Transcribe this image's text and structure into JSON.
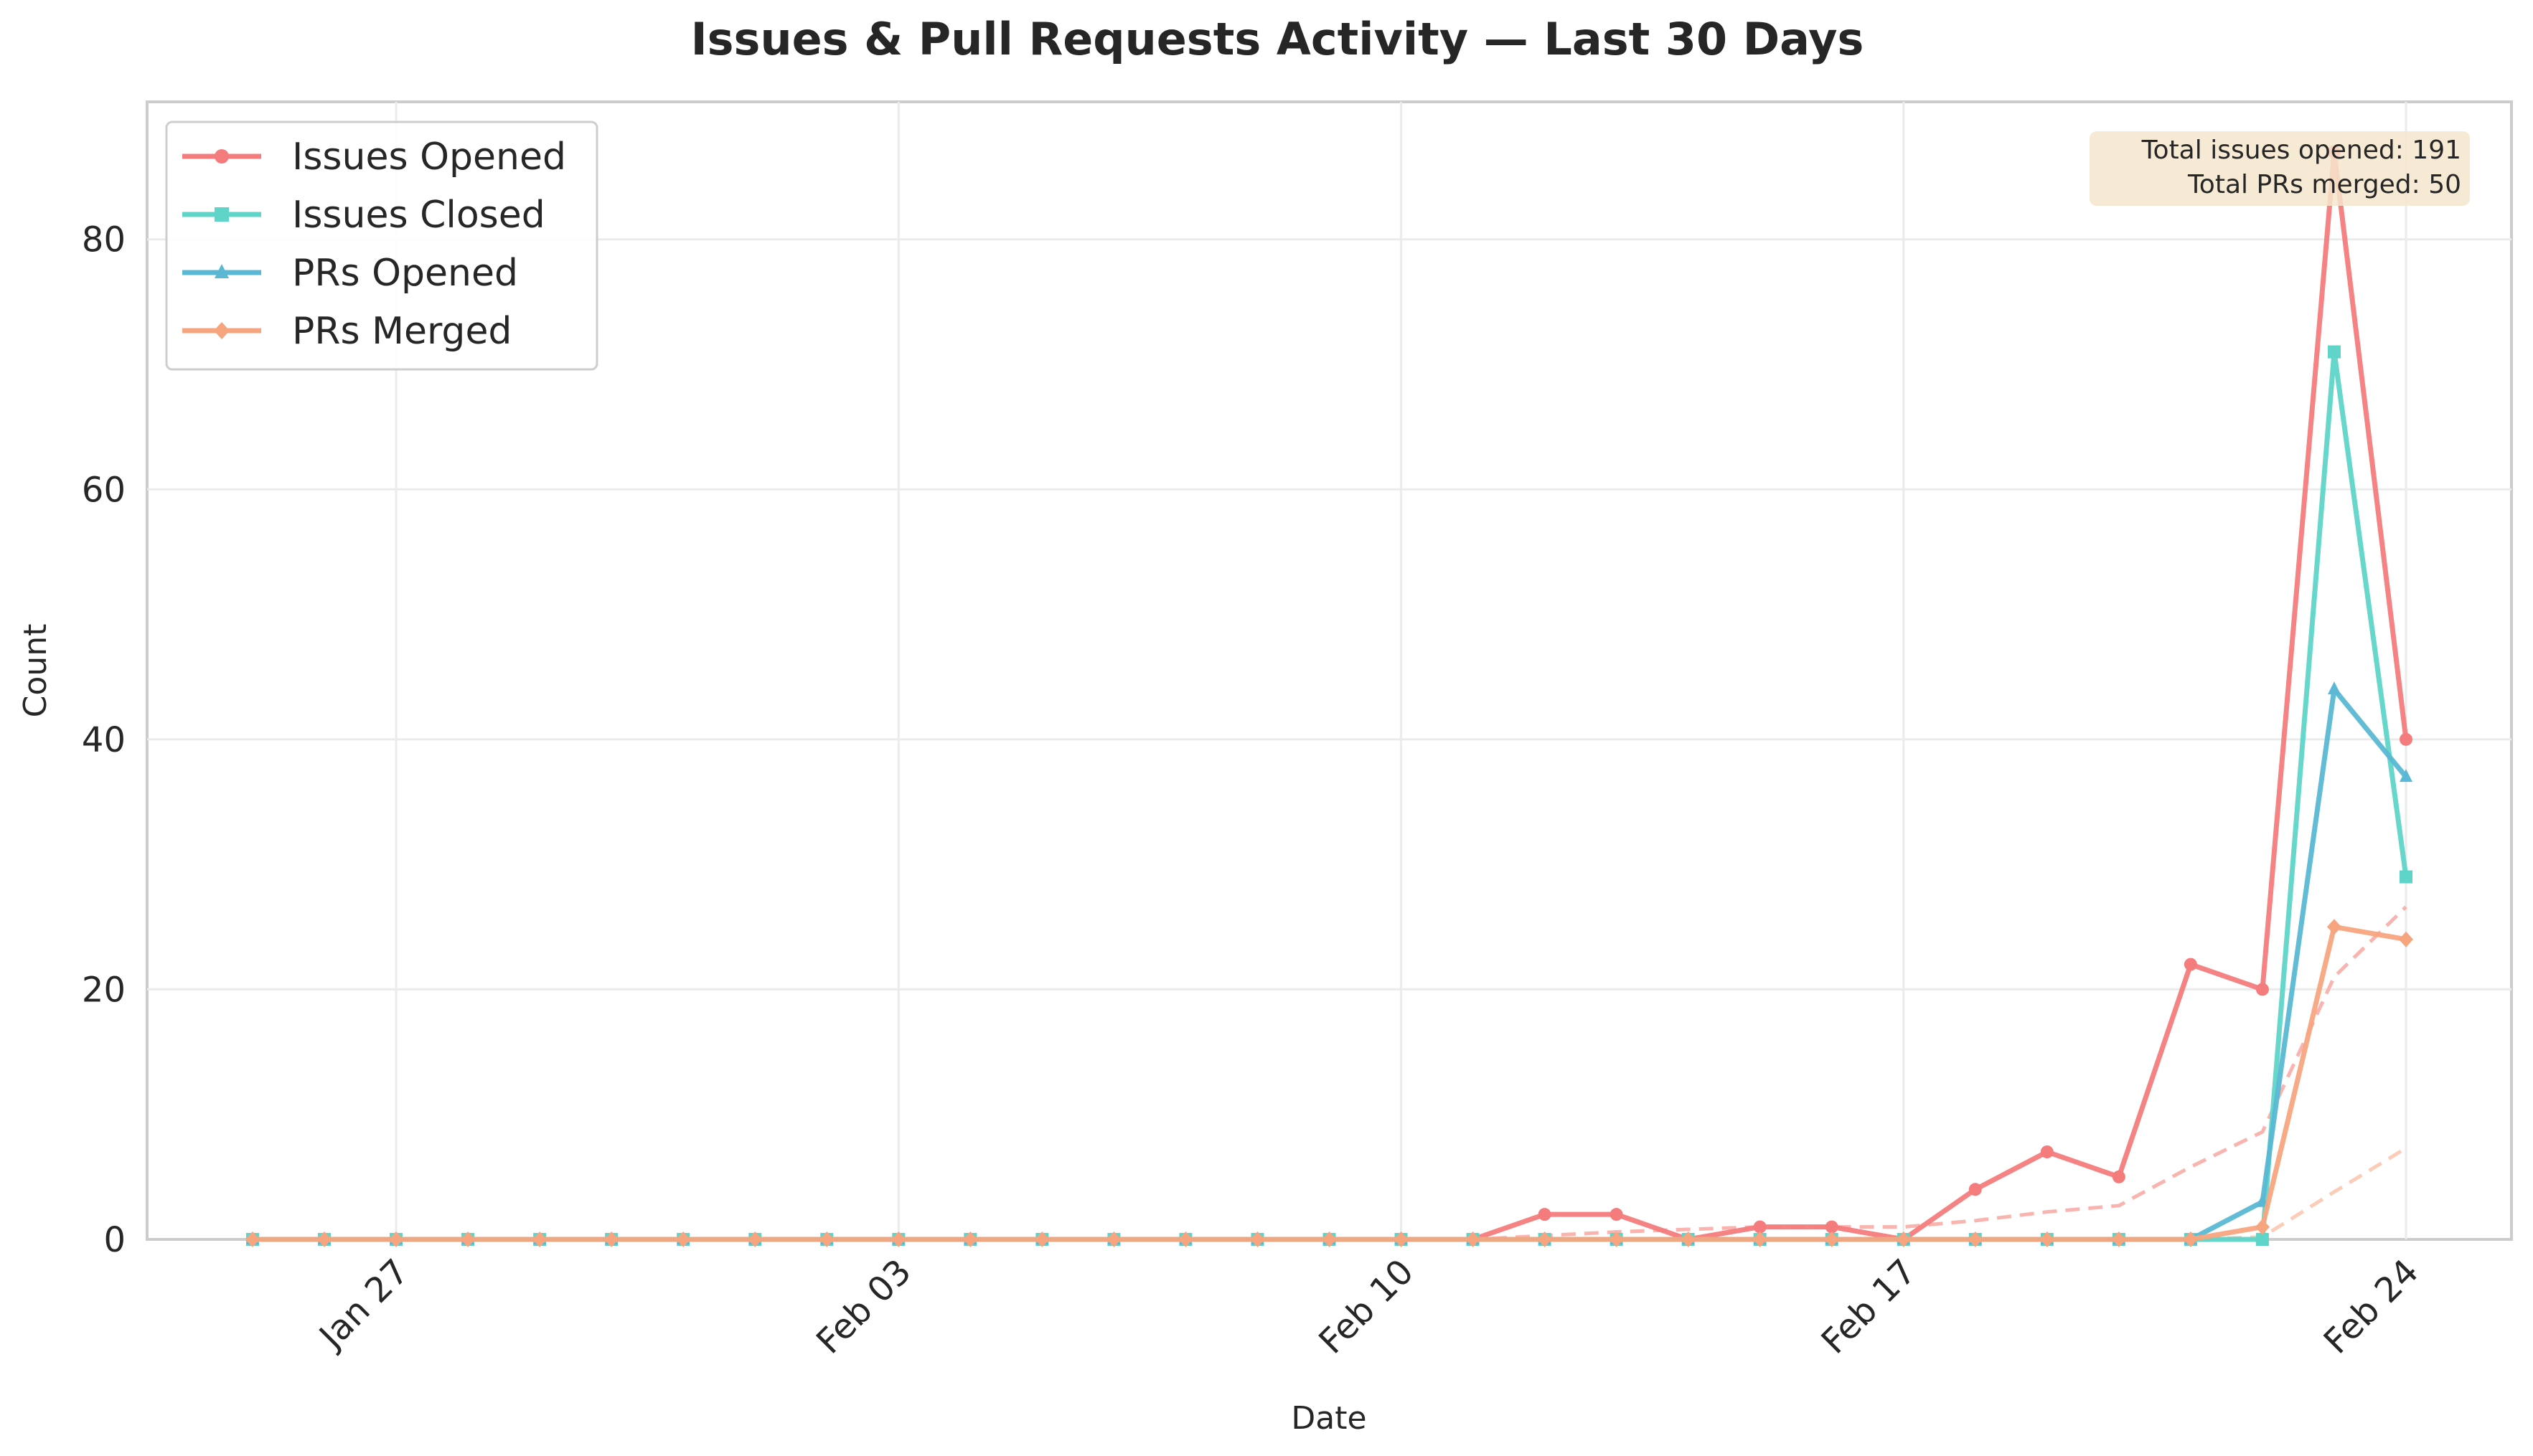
{
  "chart_data": {
    "type": "line",
    "title": "Issues & Pull Requests Activity — Last 30 Days",
    "xlabel": "Date",
    "ylabel": "Count",
    "dates": [
      "2025-01-25",
      "2025-01-26",
      "2025-01-27",
      "2025-01-28",
      "2025-01-29",
      "2025-01-30",
      "2025-01-31",
      "2025-02-01",
      "2025-02-02",
      "2025-02-03",
      "2025-02-04",
      "2025-02-05",
      "2025-02-06",
      "2025-02-07",
      "2025-02-08",
      "2025-02-09",
      "2025-02-10",
      "2025-02-11",
      "2025-02-12",
      "2025-02-13",
      "2025-02-14",
      "2025-02-15",
      "2025-02-16",
      "2025-02-17",
      "2025-02-18",
      "2025-02-19",
      "2025-02-20",
      "2025-02-21",
      "2025-02-22",
      "2025-02-23",
      "2025-02-24"
    ],
    "x_ticks": [
      "Jan 27",
      "Feb 03",
      "Feb 10",
      "Feb 17",
      "Feb 24"
    ],
    "x_tick_dates": [
      "2025-01-27",
      "2025-02-03",
      "2025-02-10",
      "2025-02-17",
      "2025-02-24"
    ],
    "ylim": [
      0,
      91
    ],
    "y_ticks": [
      0,
      20,
      40,
      60,
      80
    ],
    "grid": true,
    "legend_position": "top-left",
    "series": [
      {
        "name": "Issues Opened",
        "color": "#f47c7c",
        "marker": "circle",
        "values": [
          0,
          0,
          0,
          0,
          0,
          0,
          0,
          0,
          0,
          0,
          0,
          0,
          0,
          0,
          0,
          0,
          0,
          0,
          2,
          2,
          0,
          1,
          1,
          0,
          4,
          7,
          5,
          22,
          20,
          87,
          40
        ]
      },
      {
        "name": "Issues Closed",
        "color": "#5fd4c8",
        "marker": "square",
        "values": [
          0,
          0,
          0,
          0,
          0,
          0,
          0,
          0,
          0,
          0,
          0,
          0,
          0,
          0,
          0,
          0,
          0,
          0,
          0,
          0,
          0,
          0,
          0,
          0,
          0,
          0,
          0,
          0,
          0,
          71,
          29
        ]
      },
      {
        "name": "PRs Opened",
        "color": "#5ab8d4",
        "marker": "triangle",
        "values": [
          0,
          0,
          0,
          0,
          0,
          0,
          0,
          0,
          0,
          0,
          0,
          0,
          0,
          0,
          0,
          0,
          0,
          0,
          0,
          0,
          0,
          0,
          0,
          0,
          0,
          0,
          0,
          0,
          3,
          44,
          37
        ]
      },
      {
        "name": "PRs Merged",
        "color": "#f7a57e",
        "marker": "diamond",
        "values": [
          0,
          0,
          0,
          0,
          0,
          0,
          0,
          0,
          0,
          0,
          0,
          0,
          0,
          0,
          0,
          0,
          0,
          0,
          0,
          0,
          0,
          0,
          0,
          0,
          0,
          0,
          0,
          0,
          1,
          25,
          24
        ]
      }
    ],
    "trend_lines": [
      {
        "color": "#f9b4b0",
        "values": [
          0,
          0,
          0,
          0,
          0,
          0,
          0,
          0,
          0,
          0,
          0,
          0,
          0,
          0,
          0,
          0,
          0,
          0,
          0.3,
          0.6,
          0.8,
          1,
          1,
          1,
          1.5,
          2.2,
          2.7,
          5.8,
          8.6,
          21,
          26.6
        ]
      },
      {
        "color": "#fbcdb8",
        "values": [
          0,
          0,
          0,
          0,
          0,
          0,
          0,
          0,
          0,
          0,
          0,
          0,
          0,
          0,
          0,
          0,
          0,
          0,
          0,
          0,
          0,
          0,
          0,
          0,
          0,
          0,
          0,
          0,
          0.2,
          3.8,
          7.3
        ]
      }
    ],
    "annotation": {
      "lines": [
        "Total issues opened: 191",
        "Total PRs merged: 50"
      ],
      "background": "#f6e6cc"
    }
  }
}
